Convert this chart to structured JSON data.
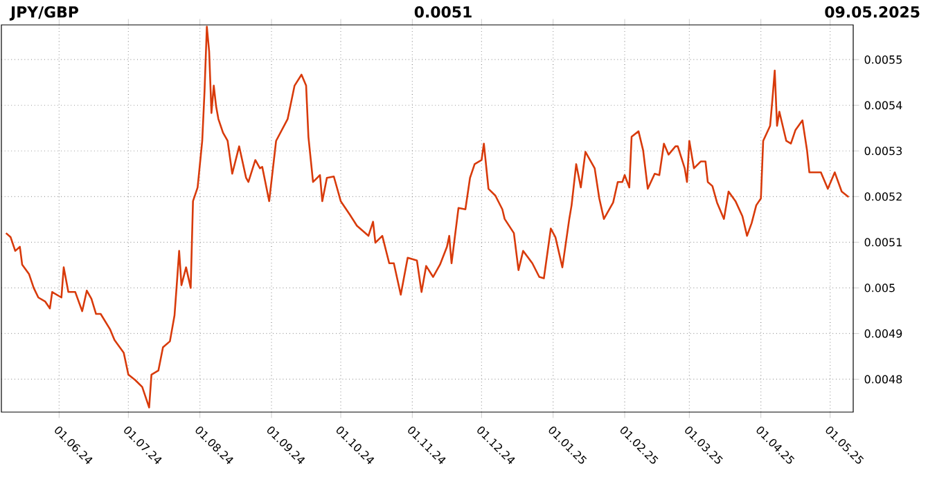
{
  "chart_data": {
    "type": "line",
    "title": "JPY/GBP",
    "subtitle": "0.0051",
    "annotations": [
      "09.05.2025"
    ],
    "x": [
      "2024-05-09",
      "2024-05-11",
      "2024-05-13",
      "2024-05-15",
      "2024-05-16",
      "2024-05-19",
      "2024-05-21",
      "2024-05-23",
      "2024-05-26",
      "2024-05-28",
      "2024-05-29",
      "2024-06-02",
      "2024-06-03",
      "2024-06-05",
      "2024-06-08",
      "2024-06-11",
      "2024-06-13",
      "2024-06-15",
      "2024-06-17",
      "2024-06-19",
      "2024-06-23",
      "2024-06-25",
      "2024-06-29",
      "2024-07-01",
      "2024-07-04",
      "2024-07-07",
      "2024-07-10",
      "2024-07-11",
      "2024-07-14",
      "2024-07-16",
      "2024-07-19",
      "2024-07-21",
      "2024-07-22",
      "2024-07-23",
      "2024-07-24",
      "2024-07-26",
      "2024-07-28",
      "2024-07-29",
      "2024-07-31",
      "2024-08-02",
      "2024-08-03",
      "2024-08-04",
      "2024-08-05",
      "2024-08-06",
      "2024-08-07",
      "2024-08-08",
      "2024-08-09",
      "2024-08-11",
      "2024-08-13",
      "2024-08-15",
      "2024-08-18",
      "2024-08-21",
      "2024-08-22",
      "2024-08-25",
      "2024-08-27",
      "2024-08-28",
      "2024-08-31",
      "2024-09-03",
      "2024-09-08",
      "2024-09-11",
      "2024-09-14",
      "2024-09-16",
      "2024-09-17",
      "2024-09-19",
      "2024-09-22",
      "2024-09-23",
      "2024-09-25",
      "2024-09-28",
      "2024-10-01",
      "2024-10-05",
      "2024-10-08",
      "2024-10-13",
      "2024-10-15",
      "2024-10-16",
      "2024-10-19",
      "2024-10-22",
      "2024-10-24",
      "2024-10-27",
      "2024-10-30",
      "2024-11-03",
      "2024-11-05",
      "2024-11-07",
      "2024-11-10",
      "2024-11-13",
      "2024-11-16",
      "2024-11-17",
      "2024-11-18",
      "2024-11-21",
      "2024-11-24",
      "2024-11-26",
      "2024-11-28",
      "2024-12-01",
      "2024-12-02",
      "2024-12-04",
      "2024-12-07",
      "2024-12-10",
      "2024-12-11",
      "2024-12-15",
      "2024-12-17",
      "2024-12-19",
      "2024-12-23",
      "2024-12-26",
      "2024-12-28",
      "2024-12-31",
      "2025-01-02",
      "2025-01-05",
      "2025-01-08",
      "2025-01-09",
      "2025-01-11",
      "2025-01-13",
      "2025-01-15",
      "2025-01-19",
      "2025-01-21",
      "2025-01-23",
      "2025-01-27",
      "2025-01-29",
      "2025-01-31",
      "2025-02-01",
      "2025-02-03",
      "2025-02-04",
      "2025-02-07",
      "2025-02-09",
      "2025-02-11",
      "2025-02-14",
      "2025-02-16",
      "2025-02-18",
      "2025-02-20",
      "2025-02-23",
      "2025-02-24",
      "2025-02-27",
      "2025-02-28",
      "2025-03-01",
      "2025-03-03",
      "2025-03-06",
      "2025-03-08",
      "2025-03-09",
      "2025-03-11",
      "2025-03-13",
      "2025-03-16",
      "2025-03-18",
      "2025-03-21",
      "2025-03-24",
      "2025-03-26",
      "2025-03-28",
      "2025-03-30",
      "2025-04-01",
      "2025-04-02",
      "2025-04-05",
      "2025-04-06",
      "2025-04-07",
      "2025-04-08",
      "2025-04-09",
      "2025-04-12",
      "2025-04-14",
      "2025-04-16",
      "2025-04-19",
      "2025-04-21",
      "2025-04-22",
      "2025-04-27",
      "2025-04-30",
      "2025-05-03",
      "2025-05-06",
      "2025-05-09"
    ],
    "series": [
      {
        "color": "#d83a0a",
        "values": [
          0.00512,
          0.005111,
          0.005081,
          0.00509,
          0.005051,
          0.00503,
          0.005,
          0.004979,
          0.00497,
          0.004955,
          0.004991,
          0.004979,
          0.005045,
          0.004991,
          0.004991,
          0.004949,
          0.004994,
          0.004976,
          0.004943,
          0.004943,
          0.00491,
          0.004886,
          0.004858,
          0.00481,
          0.004798,
          0.004783,
          0.004738,
          0.00481,
          0.004819,
          0.00487,
          0.004883,
          0.00494,
          0.005009,
          0.005081,
          0.005006,
          0.005045,
          0.005,
          0.00519,
          0.00522,
          0.005322,
          0.005431,
          0.005572,
          0.005518,
          0.005383,
          0.005443,
          0.005398,
          0.00537,
          0.00534,
          0.005322,
          0.00525,
          0.00531,
          0.005241,
          0.005232,
          0.00528,
          0.005262,
          0.005265,
          0.00519,
          0.005322,
          0.00537,
          0.005443,
          0.005467,
          0.005443,
          0.005331,
          0.005232,
          0.005247,
          0.00519,
          0.005241,
          0.005244,
          0.00519,
          0.00516,
          0.005136,
          0.005114,
          0.005145,
          0.005099,
          0.005114,
          0.005054,
          0.005054,
          0.004985,
          0.005066,
          0.00506,
          0.004991,
          0.005048,
          0.005024,
          0.005051,
          0.00509,
          0.005114,
          0.005054,
          0.005175,
          0.005172,
          0.005241,
          0.005271,
          0.00528,
          0.005316,
          0.005217,
          0.005202,
          0.005172,
          0.005151,
          0.00512,
          0.005039,
          0.005081,
          0.005054,
          0.005024,
          0.005021,
          0.00513,
          0.005111,
          0.005045,
          0.005151,
          0.005181,
          0.005271,
          0.00522,
          0.005298,
          0.005262,
          0.005196,
          0.005151,
          0.005187,
          0.005232,
          0.005232,
          0.005247,
          0.00522,
          0.005331,
          0.005343,
          0.005301,
          0.005217,
          0.00525,
          0.005247,
          0.005316,
          0.005292,
          0.00531,
          0.00531,
          0.005262,
          0.005232,
          0.005322,
          0.005262,
          0.005277,
          0.005277,
          0.005232,
          0.005223,
          0.005187,
          0.005151,
          0.005211,
          0.00519,
          0.005157,
          0.005114,
          0.005142,
          0.005181,
          0.005196,
          0.005322,
          0.005355,
          0.005413,
          0.005476,
          0.005355,
          0.005386,
          0.005322,
          0.005316,
          0.005346,
          0.005367,
          0.005301,
          0.005253,
          0.005253,
          0.005217,
          0.005253,
          0.005211,
          0.005199
        ]
      }
    ],
    "xlim": [
      "2024-05-07",
      "2025-05-11"
    ],
    "xticks": [
      {
        "value": "2024-06-01",
        "label": "01.06.24"
      },
      {
        "value": "2024-07-01",
        "label": "01.07.24"
      },
      {
        "value": "2024-08-01",
        "label": "01.08.24"
      },
      {
        "value": "2024-09-01",
        "label": "01.09.24"
      },
      {
        "value": "2024-10-01",
        "label": "01.10.24"
      },
      {
        "value": "2024-11-01",
        "label": "01.11.24"
      },
      {
        "value": "2024-12-01",
        "label": "01.12.24"
      },
      {
        "value": "2025-01-01",
        "label": "01.01.25"
      },
      {
        "value": "2025-02-01",
        "label": "01.02.25"
      },
      {
        "value": "2025-03-01",
        "label": "01.03.25"
      },
      {
        "value": "2025-04-01",
        "label": "01.04.25"
      },
      {
        "value": "2025-05-01",
        "label": "01.05.25"
      }
    ],
    "ylim": [
      0.004728,
      0.005576
    ],
    "yticks": [
      0.0048,
      0.0049,
      0.005,
      0.0051,
      0.0052,
      0.0053,
      0.0054,
      0.0055
    ],
    "grid": true,
    "marker": "none",
    "line_style": "solid"
  }
}
